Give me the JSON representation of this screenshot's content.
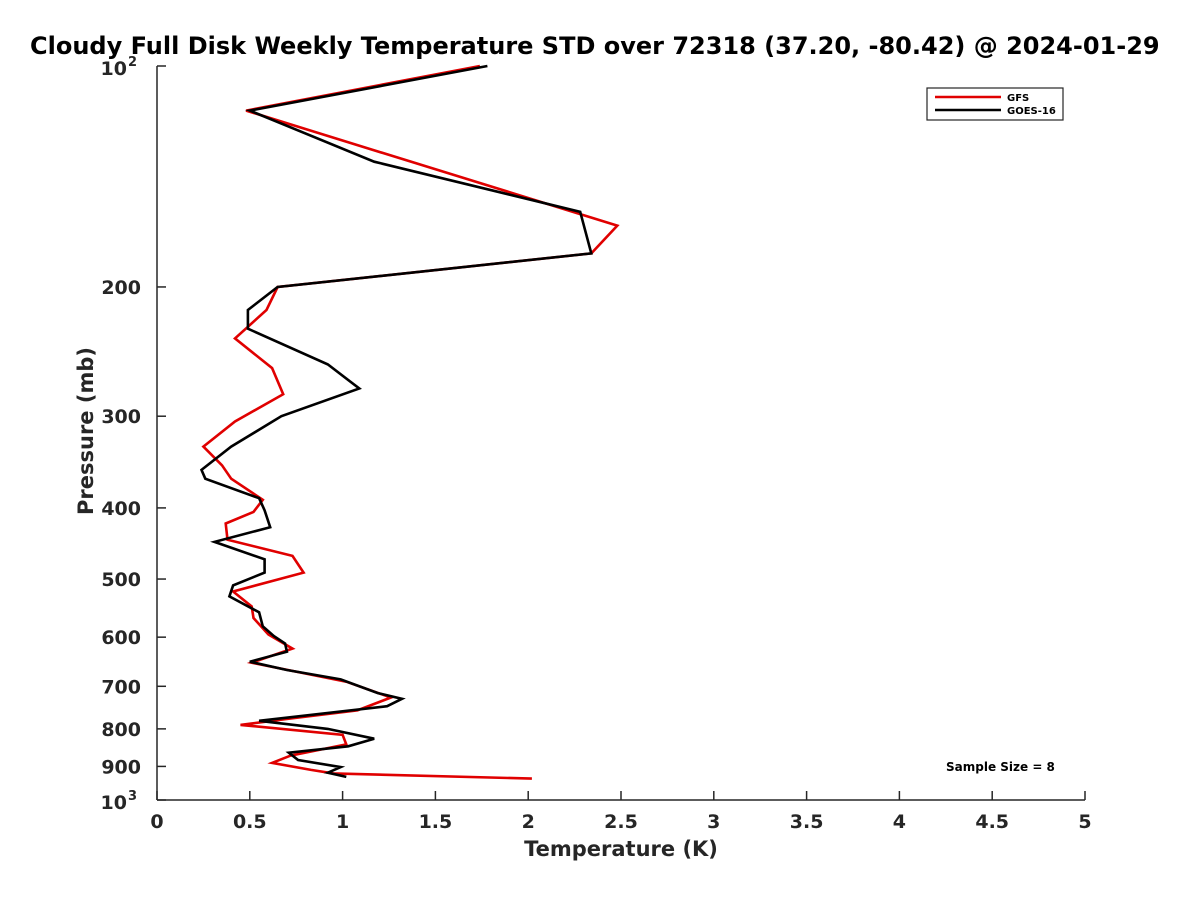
{
  "chart_data": {
    "type": "line",
    "title": "Cloudy Full Disk Weekly Temperature STD over 72318 (37.20, -80.42) @ 2024-01-29",
    "xlabel": "Temperature (K)",
    "ylabel": "Pressure (mb)",
    "xlim": [
      0,
      5
    ],
    "ylim": [
      100,
      1000
    ],
    "yscale": "log",
    "yreversed": true,
    "xticks": [
      0,
      0.5,
      1,
      1.5,
      2,
      2.5,
      3,
      3.5,
      4,
      4.5,
      5
    ],
    "xtick_labels": [
      "0",
      "0.5",
      "1",
      "1.5",
      "2",
      "2.5",
      "3",
      "3.5",
      "4",
      "4.5",
      "5"
    ],
    "yticks": [
      {
        "value": 100,
        "base": "10",
        "exp": "2"
      },
      {
        "value": 200,
        "label": "200"
      },
      {
        "value": 300,
        "label": "300"
      },
      {
        "value": 400,
        "label": "400"
      },
      {
        "value": 500,
        "label": "500"
      },
      {
        "value": 600,
        "label": "600"
      },
      {
        "value": 700,
        "label": "700"
      },
      {
        "value": 800,
        "label": "800"
      },
      {
        "value": 900,
        "label": "900"
      },
      {
        "value": 1000,
        "base": "10",
        "exp": "3"
      }
    ],
    "legend_position": "top-right",
    "grid": false,
    "series": [
      {
        "name": "GFS",
        "color": "#e00000",
        "x": [
          1.74,
          0.48,
          2.48,
          2.34,
          0.65,
          0.59,
          0.42,
          0.62,
          0.68,
          0.42,
          0.25,
          0.35,
          0.4,
          0.57,
          0.52,
          0.37,
          0.38,
          0.73,
          0.79,
          0.41,
          0.51,
          0.52,
          0.6,
          0.73,
          0.51,
          1.02,
          1.26,
          1.08,
          0.71,
          0.45,
          1.0,
          1.02,
          0.72,
          0.62,
          0.83,
          0.95,
          2.02
        ],
        "y": [
          100,
          115,
          165,
          180,
          200,
          215,
          235,
          258,
          280,
          305,
          330,
          350,
          365,
          390,
          405,
          420,
          442,
          465,
          490,
          520,
          545,
          565,
          595,
          622,
          650,
          690,
          725,
          755,
          775,
          790,
          815,
          840,
          870,
          890,
          910,
          920,
          935
        ]
      },
      {
        "name": "GOES-16",
        "color": "#000000",
        "x": [
          1.78,
          0.5,
          1.17,
          2.28,
          2.34,
          0.65,
          0.49,
          0.49,
          0.92,
          1.09,
          0.67,
          0.4,
          0.24,
          0.26,
          0.55,
          0.58,
          0.61,
          0.31,
          0.58,
          0.58,
          0.41,
          0.39,
          0.55,
          0.57,
          0.63,
          0.69,
          0.7,
          0.5,
          0.7,
          0.99,
          1.19,
          1.32,
          1.24,
          0.55,
          0.92,
          1.17,
          1.03,
          0.71,
          0.76,
          0.99,
          0.92,
          1.02
        ],
        "y": [
          100,
          115,
          135,
          158,
          180,
          200,
          215,
          228,
          255,
          275,
          300,
          330,
          355,
          365,
          388,
          403,
          425,
          445,
          470,
          490,
          510,
          528,
          555,
          580,
          598,
          612,
          628,
          648,
          665,
          685,
          715,
          728,
          745,
          780,
          800,
          825,
          845,
          862,
          882,
          902,
          918,
          930
        ]
      }
    ],
    "annotations": [
      {
        "text": "Sample Size = 8",
        "position": "bottom-right"
      }
    ]
  }
}
